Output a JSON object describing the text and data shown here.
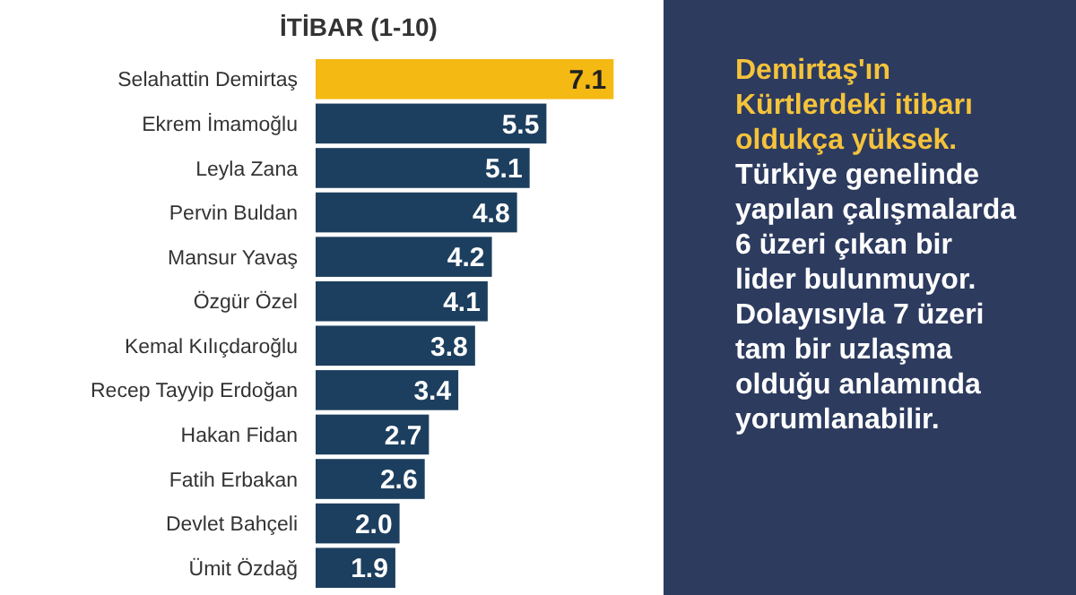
{
  "chart_data": [
    {
      "type": "bar",
      "orientation": "horizontal",
      "title": "İTİBAR (1-10)",
      "value_labels": [
        "7.1",
        "5.5",
        "5.1",
        "4.8",
        "4.2",
        "4.1",
        "3.8",
        "3.4",
        "2.7",
        "2.6",
        "2.0",
        "1.9"
      ],
      "categories": [
        "Selahattin Demirtaş",
        "Ekrem İmamoğlu",
        "Leyla Zana",
        "Pervin Buldan",
        "Mansur Yavaş",
        "Özgür Özel",
        "Kemal Kılıçdaroğlu",
        "Recep Tayyip Erdoğan",
        "Hakan Fidan",
        "Fatih Erbakan",
        "Devlet Bahçeli",
        "Ümit Özdağ"
      ],
      "values": [
        7.1,
        5.5,
        5.1,
        4.8,
        4.2,
        4.1,
        3.8,
        3.4,
        2.7,
        2.6,
        2.0,
        1.9
      ],
      "colors": [
        "#f5b914",
        "#1d3f5f",
        "#1d3f5f",
        "#1d3f5f",
        "#1d3f5f",
        "#1d3f5f",
        "#1d3f5f",
        "#1d3f5f",
        "#1d3f5f",
        "#1d3f5f",
        "#1d3f5f",
        "#1d3f5f"
      ]
    },
    {
      "type": "other",
      "annotations": [
        "Demirtaş'ın Kürtlerdeki itibarı oldukça yüksek.",
        "Türkiye genelinde yapılan çalışmalarda 6 üzeri çıkan bir lider bulunmuyor. Dolayısıyla 7 üzeri tam bir uzlaşma olduğu anlamında yorumlanabilir."
      ]
    }
  ]
}
